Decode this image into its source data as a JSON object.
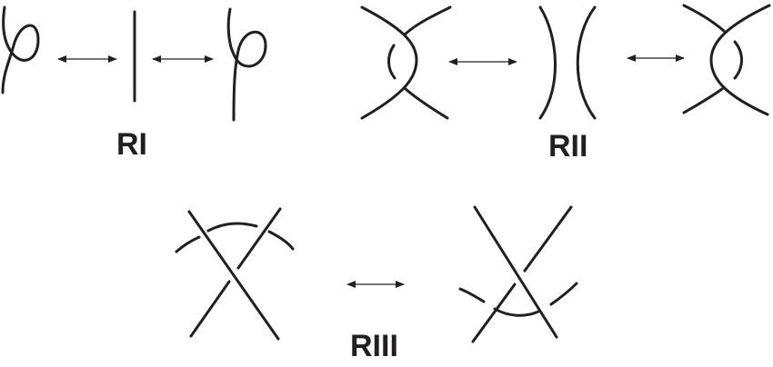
{
  "labels": {
    "r1": "RI",
    "r2": "RII",
    "r3": "RIII"
  },
  "colors": {
    "ink": "#231f20",
    "background": "#ffffff"
  }
}
